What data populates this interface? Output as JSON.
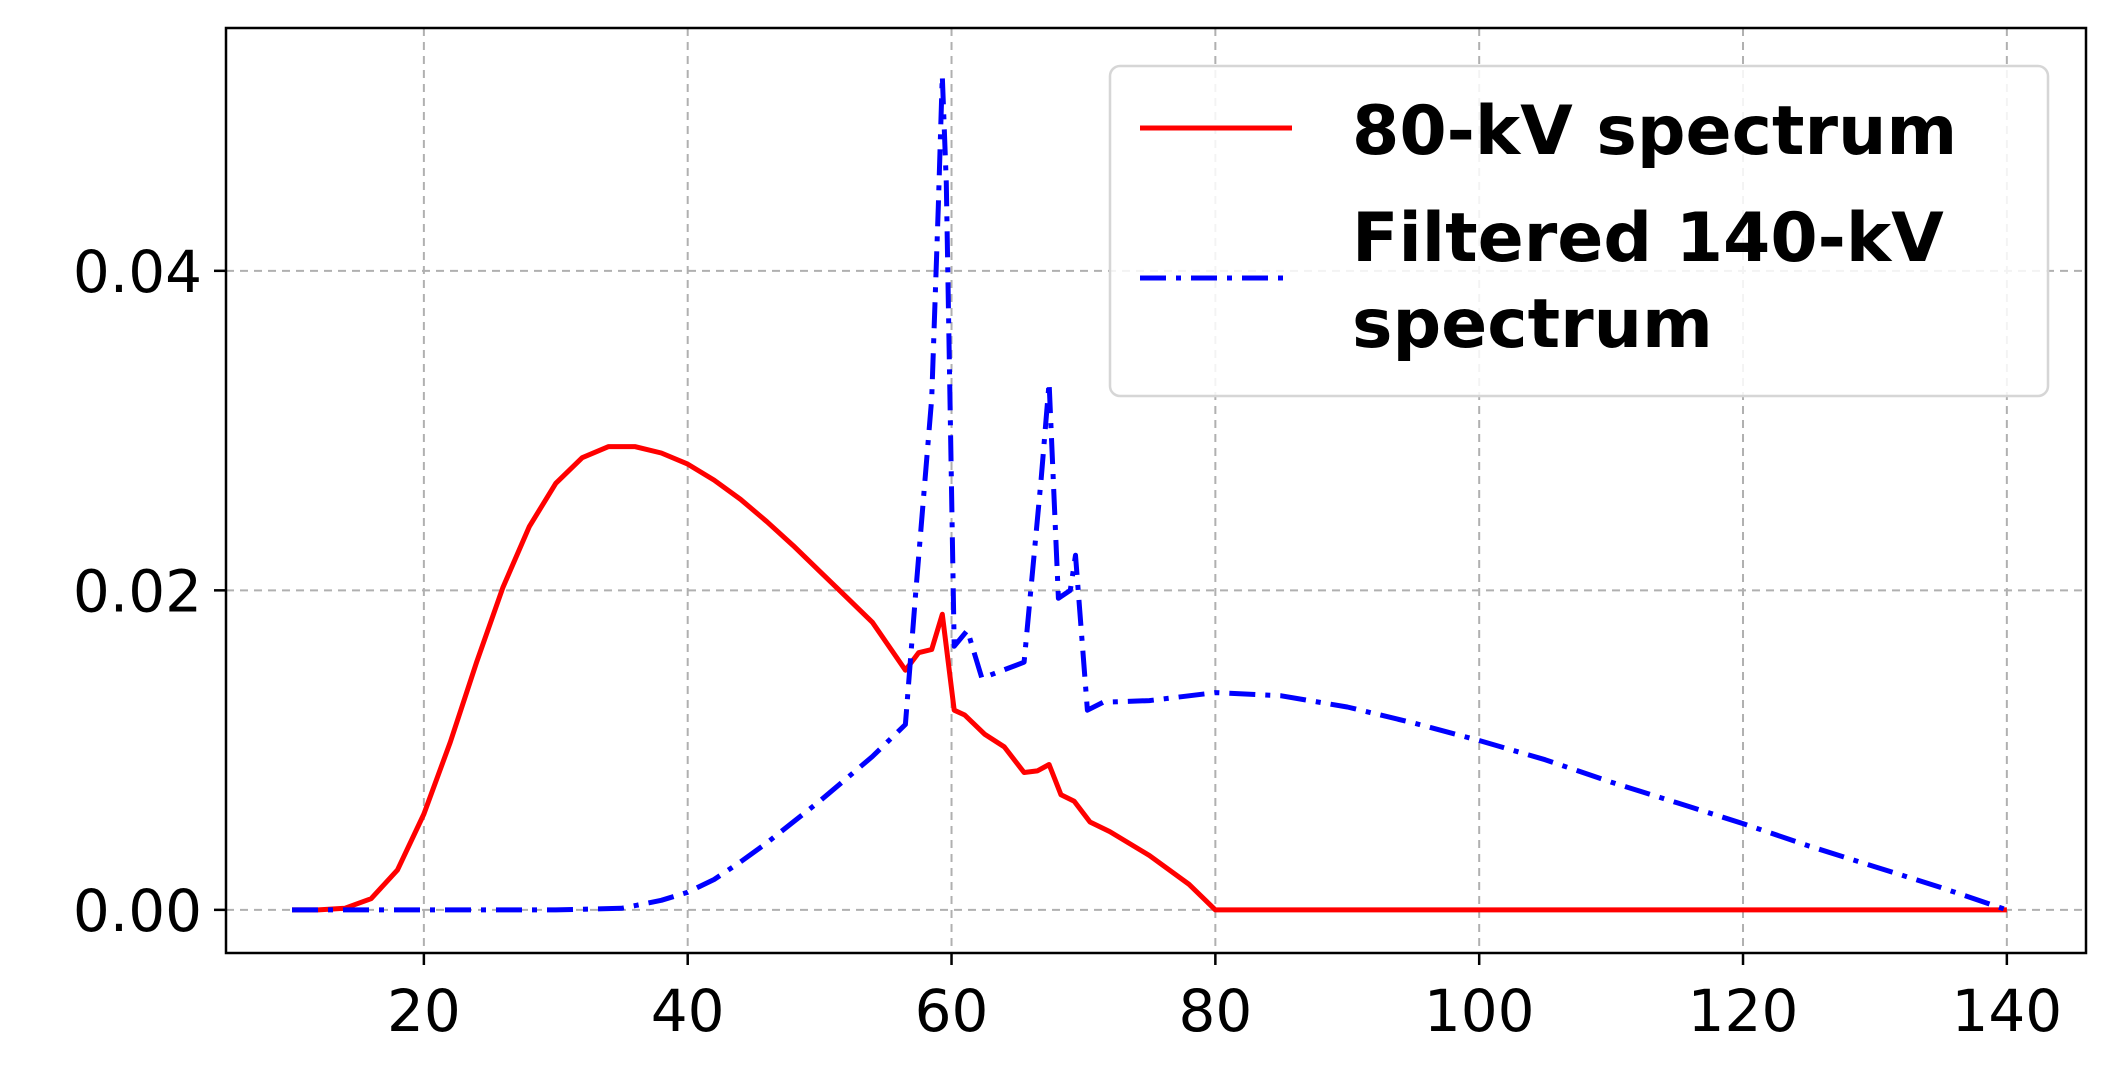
{
  "chart_data": {
    "type": "line",
    "title": "",
    "xlabel": "",
    "ylabel": "",
    "xlim": [
      5,
      146
    ],
    "ylim": [
      -0.0027,
      0.0552
    ],
    "x_ticks": [
      20,
      40,
      60,
      80,
      100,
      120,
      140
    ],
    "x_tick_labels": [
      "20",
      "40",
      "60",
      "80",
      "100",
      "120",
      "140"
    ],
    "y_ticks": [
      0.0,
      0.02,
      0.04
    ],
    "y_tick_labels": [
      "0.00",
      "0.02",
      "0.04"
    ],
    "grid": true,
    "legend_position": "top-right",
    "series": [
      {
        "name": "80-kV spectrum",
        "color": "#ff0000",
        "linestyle": "solid",
        "points": [
          [
            10,
            0.0
          ],
          [
            12,
            0.0
          ],
          [
            14,
            0.0001
          ],
          [
            16,
            0.0007
          ],
          [
            18,
            0.0025
          ],
          [
            20,
            0.006
          ],
          [
            22,
            0.0105
          ],
          [
            24,
            0.0155
          ],
          [
            26,
            0.0202
          ],
          [
            28,
            0.024
          ],
          [
            30,
            0.0267
          ],
          [
            32,
            0.0283
          ],
          [
            34,
            0.029
          ],
          [
            36,
            0.029
          ],
          [
            38,
            0.0286
          ],
          [
            40,
            0.0279
          ],
          [
            42,
            0.0269
          ],
          [
            44,
            0.0257
          ],
          [
            46,
            0.0243
          ],
          [
            48,
            0.0228
          ],
          [
            50,
            0.0212
          ],
          [
            52,
            0.0196
          ],
          [
            54,
            0.018
          ],
          [
            56.5,
            0.015
          ],
          [
            57.5,
            0.0161
          ],
          [
            58.5,
            0.0163
          ],
          [
            59.3,
            0.0185
          ],
          [
            60.2,
            0.0125
          ],
          [
            61,
            0.0122
          ],
          [
            62.5,
            0.011
          ],
          [
            64,
            0.0102
          ],
          [
            65.5,
            0.0086
          ],
          [
            66.5,
            0.0087
          ],
          [
            67.4,
            0.0091
          ],
          [
            68.3,
            0.0072
          ],
          [
            69.3,
            0.0068
          ],
          [
            70.5,
            0.0055
          ],
          [
            72,
            0.0049
          ],
          [
            75,
            0.0034
          ],
          [
            78,
            0.0016
          ],
          [
            80,
            0.0
          ],
          [
            90,
            0.0
          ],
          [
            100,
            0.0
          ],
          [
            110,
            0.0
          ],
          [
            120,
            0.0
          ],
          [
            130,
            0.0
          ],
          [
            140,
            0.0
          ]
        ]
      },
      {
        "name": "Filtered 140-kV spectrum",
        "color": "#0000ff",
        "linestyle": "dashdot",
        "points": [
          [
            10,
            0.0
          ],
          [
            20,
            0.0
          ],
          [
            30,
            0.0
          ],
          [
            35,
            0.0001
          ],
          [
            38,
            0.0006
          ],
          [
            40,
            0.0011
          ],
          [
            42,
            0.0019
          ],
          [
            44,
            0.003
          ],
          [
            46,
            0.0042
          ],
          [
            48,
            0.0055
          ],
          [
            50,
            0.0068
          ],
          [
            52,
            0.0082
          ],
          [
            54,
            0.0096
          ],
          [
            56.5,
            0.0116
          ],
          [
            57.3,
            0.02
          ],
          [
            58.5,
            0.032
          ],
          [
            59.0,
            0.044
          ],
          [
            59.3,
            0.0522
          ],
          [
            59.6,
            0.0455
          ],
          [
            60.2,
            0.0165
          ],
          [
            61.2,
            0.0175
          ],
          [
            62.3,
            0.0145
          ],
          [
            65.5,
            0.0155
          ],
          [
            66.8,
            0.027
          ],
          [
            67.4,
            0.033
          ],
          [
            68.1,
            0.0195
          ],
          [
            69.0,
            0.02
          ],
          [
            69.4,
            0.0222
          ],
          [
            70.3,
            0.0125
          ],
          [
            71.5,
            0.013
          ],
          [
            75,
            0.0131
          ],
          [
            80,
            0.0136
          ],
          [
            85,
            0.0134
          ],
          [
            90,
            0.0127
          ],
          [
            95,
            0.0117
          ],
          [
            100,
            0.0106
          ],
          [
            105,
            0.0094
          ],
          [
            110,
            0.008
          ],
          [
            115,
            0.0067
          ],
          [
            120,
            0.0054
          ],
          [
            125,
            0.004
          ],
          [
            130,
            0.0027
          ],
          [
            135,
            0.0014
          ],
          [
            140,
            0.0
          ]
        ]
      }
    ]
  },
  "legend": {
    "items": [
      {
        "lines": [
          "80-kV spectrum"
        ]
      },
      {
        "lines": [
          "Filtered 140-kV",
          "spectrum"
        ]
      }
    ]
  }
}
